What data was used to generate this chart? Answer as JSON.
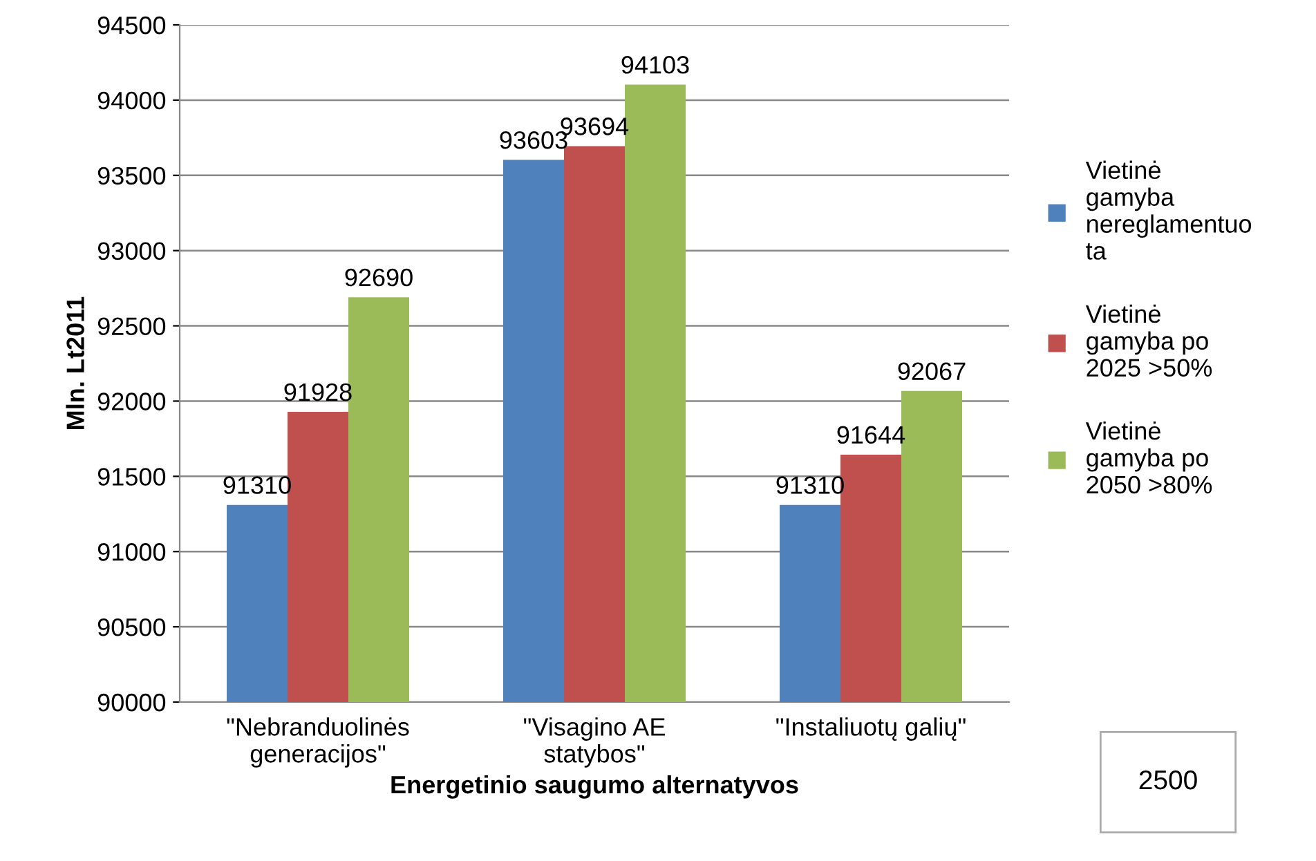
{
  "chart_data": {
    "type": "bar",
    "xlabel": "Energetinio saugumo alternatyvos",
    "ylabel": "Mln. Lt2011",
    "categories": [
      "\"Nebranduolinės generacijos\"",
      "\"Visagino AE statybos\"",
      "\"Instaliuotų galių\""
    ],
    "series": [
      {
        "name": "Vietinė gamyba nereglamentuota",
        "color": "#4f81bd",
        "values": [
          91310,
          93603,
          91310
        ]
      },
      {
        "name": "Vietinė gamyba po 2025 >50%",
        "color": "#c0504d",
        "values": [
          91928,
          93694,
          91644
        ]
      },
      {
        "name": "Vietinė gamyba po 2050 >80%",
        "color": "#9bbb59",
        "values": [
          92690,
          94103,
          92067
        ]
      }
    ],
    "ylim": [
      90000,
      94500
    ],
    "yticks": [
      90000,
      90500,
      91000,
      91500,
      92000,
      92500,
      93000,
      93500,
      94000,
      94500
    ],
    "grid": "y",
    "legend": "right",
    "data_labels": true,
    "annotations": [
      "2500"
    ]
  }
}
